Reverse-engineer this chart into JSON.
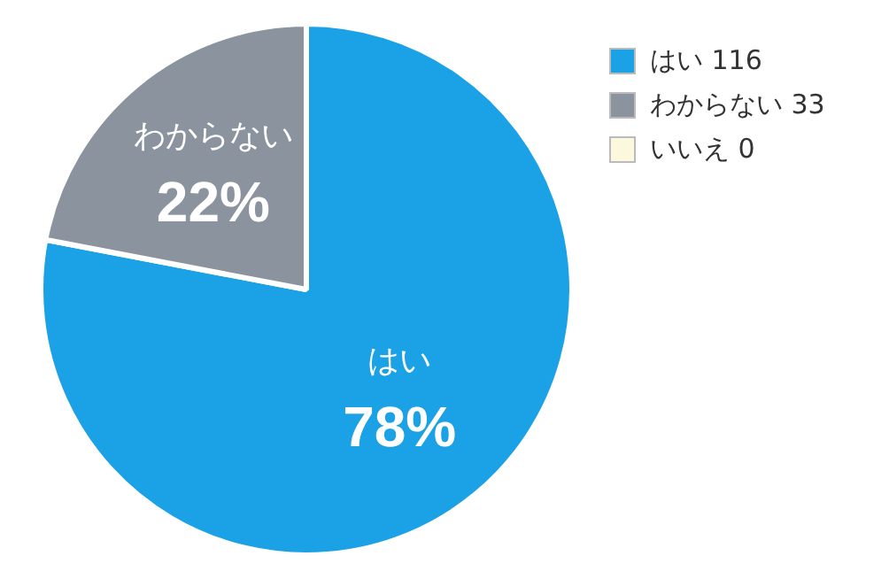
{
  "chart_data": {
    "type": "pie",
    "categories": [
      "はい 116",
      "わからない 33",
      "いいえ 0"
    ],
    "values": [
      78,
      22,
      0
    ],
    "colors": [
      "#1ba1e6",
      "#8b939e",
      "#fbf8dd"
    ],
    "value_labels": [
      "はい 78%",
      "わからない 22%",
      null
    ],
    "legend": "top right"
  }
}
